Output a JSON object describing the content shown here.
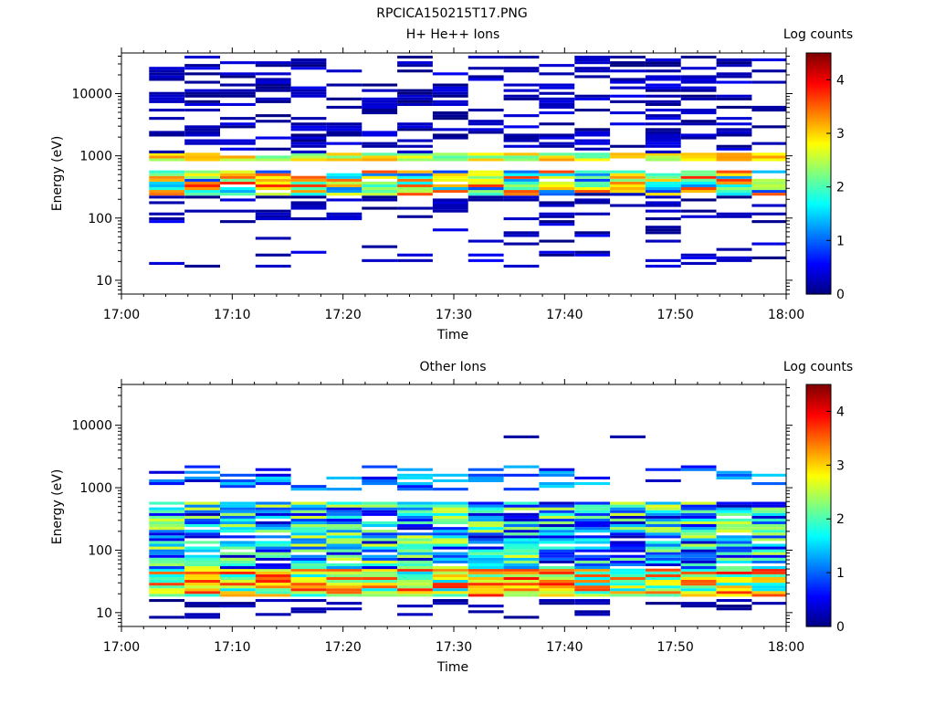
{
  "figure_title": "RPCICA150215T17.PNG",
  "chart_data": [
    {
      "type": "heatmap",
      "title": "H+ He++ Ions",
      "xlabel": "Time",
      "ylabel": "Energy (eV)",
      "x_ticks": [
        "17:00",
        "17:10",
        "17:20",
        "17:30",
        "17:40",
        "17:50",
        "18:00"
      ],
      "y_ticks": [
        "10",
        "100",
        "1000",
        "10000"
      ],
      "y_scale": "log",
      "ylim": [
        6,
        45000
      ],
      "colorbar": {
        "label": "Log counts",
        "ticks": [
          "0",
          "1",
          "2",
          "3",
          "4"
        ],
        "range": [
          0,
          4.5
        ]
      },
      "time_bins": 19,
      "data_start_minute": 2.5,
      "bin_minutes": 3.2,
      "energy_bin_log_step": 0.0448,
      "bands": [
        {
          "energy_min": 820,
          "energy_max": 1100,
          "level_min": 2.0,
          "level_max": 3.3,
          "density": 0.95
        },
        {
          "energy_min": 230,
          "energy_max": 560,
          "level_min": 0.8,
          "level_max": 3.8,
          "density": 0.9
        },
        {
          "energy_min": 1100,
          "energy_max": 40000,
          "level_min": 0.0,
          "level_max": 0.5,
          "density": 0.4
        },
        {
          "energy_min": 100,
          "energy_max": 230,
          "level_min": 0.0,
          "level_max": 0.4,
          "density": 0.3
        },
        {
          "energy_min": 16,
          "energy_max": 100,
          "level_min": 0.0,
          "level_max": 0.6,
          "density": 0.15
        }
      ]
    },
    {
      "type": "heatmap",
      "title": "Other Ions",
      "xlabel": "Time",
      "ylabel": "Energy (eV)",
      "x_ticks": [
        "17:00",
        "17:10",
        "17:20",
        "17:30",
        "17:40",
        "17:50",
        "18:00"
      ],
      "y_ticks": [
        "10",
        "100",
        "1000",
        "10000"
      ],
      "y_scale": "log",
      "ylim": [
        6,
        45000
      ],
      "colorbar": {
        "label": "Log counts",
        "ticks": [
          "0",
          "1",
          "2",
          "3",
          "4"
        ],
        "range": [
          0,
          4.5
        ]
      },
      "time_bins": 19,
      "data_start_minute": 2.5,
      "bin_minutes": 3.2,
      "energy_bin_log_step": 0.0448,
      "bands": [
        {
          "energy_min": 18,
          "energy_max": 50,
          "level_min": 1.4,
          "level_max": 3.9,
          "density": 1.0
        },
        {
          "energy_min": 50,
          "energy_max": 540,
          "level_min": 0.2,
          "level_max": 2.7,
          "density": 0.92
        },
        {
          "energy_min": 900,
          "energy_max": 2200,
          "level_min": 0.3,
          "level_max": 1.6,
          "density": 0.3
        },
        {
          "energy_min": 8,
          "energy_max": 15,
          "level_min": 0.0,
          "level_max": 0.3,
          "density": 0.25
        },
        {
          "energy_min": 6200,
          "energy_max": 6800,
          "level_min": 0.0,
          "level_max": 0.3,
          "density": 0.05
        }
      ]
    }
  ]
}
